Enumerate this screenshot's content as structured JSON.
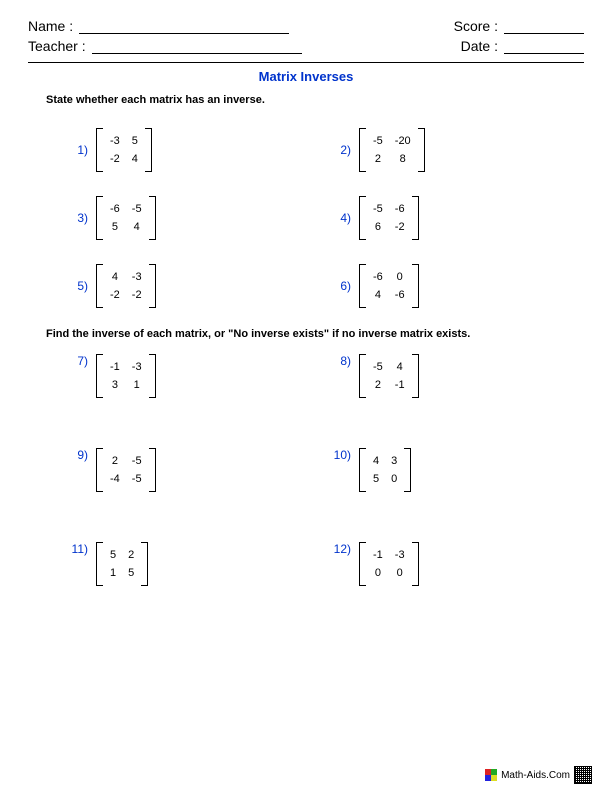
{
  "header": {
    "name_label": "Name :",
    "teacher_label": "Teacher :",
    "score_label": "Score :",
    "date_label": "Date :"
  },
  "title": "Matrix Inverses",
  "instruction1": "State whether each matrix has an inverse.",
  "instruction2": "Find the inverse of each matrix, or \"No inverse exists\" if no inverse matrix exists.",
  "problems_a": [
    {
      "n": "1)",
      "m": [
        [
          "-3",
          "5"
        ],
        [
          "-2",
          "4"
        ]
      ]
    },
    {
      "n": "2)",
      "m": [
        [
          "-5",
          "-20"
        ],
        [
          "2",
          "8"
        ]
      ]
    },
    {
      "n": "3)",
      "m": [
        [
          "-6",
          "-5"
        ],
        [
          "5",
          "4"
        ]
      ]
    },
    {
      "n": "4)",
      "m": [
        [
          "-5",
          "-6"
        ],
        [
          "6",
          "-2"
        ]
      ]
    },
    {
      "n": "5)",
      "m": [
        [
          "4",
          "-3"
        ],
        [
          "-2",
          "-2"
        ]
      ]
    },
    {
      "n": "6)",
      "m": [
        [
          "-6",
          "0"
        ],
        [
          "4",
          "-6"
        ]
      ]
    }
  ],
  "problems_b": [
    {
      "n": "7)",
      "m": [
        [
          "-1",
          "-3"
        ],
        [
          "3",
          "1"
        ]
      ]
    },
    {
      "n": "8)",
      "m": [
        [
          "-5",
          "4"
        ],
        [
          "2",
          "-1"
        ]
      ]
    },
    {
      "n": "9)",
      "m": [
        [
          "2",
          "-5"
        ],
        [
          "-4",
          "-5"
        ]
      ]
    },
    {
      "n": "10)",
      "m": [
        [
          "4",
          "3"
        ],
        [
          "5",
          "0"
        ]
      ]
    },
    {
      "n": "11)",
      "m": [
        [
          "5",
          "2"
        ],
        [
          "1",
          "5"
        ]
      ]
    },
    {
      "n": "12)",
      "m": [
        [
          "-1",
          "-3"
        ],
        [
          "0",
          "0"
        ]
      ]
    }
  ],
  "footer": {
    "site": "Math-Aids.Com"
  },
  "style": {
    "accent_color": "#0033cc",
    "text_color": "#000000",
    "background": "#ffffff",
    "font_family": "Arial",
    "title_fontsize": 13,
    "body_fontsize": 11
  }
}
